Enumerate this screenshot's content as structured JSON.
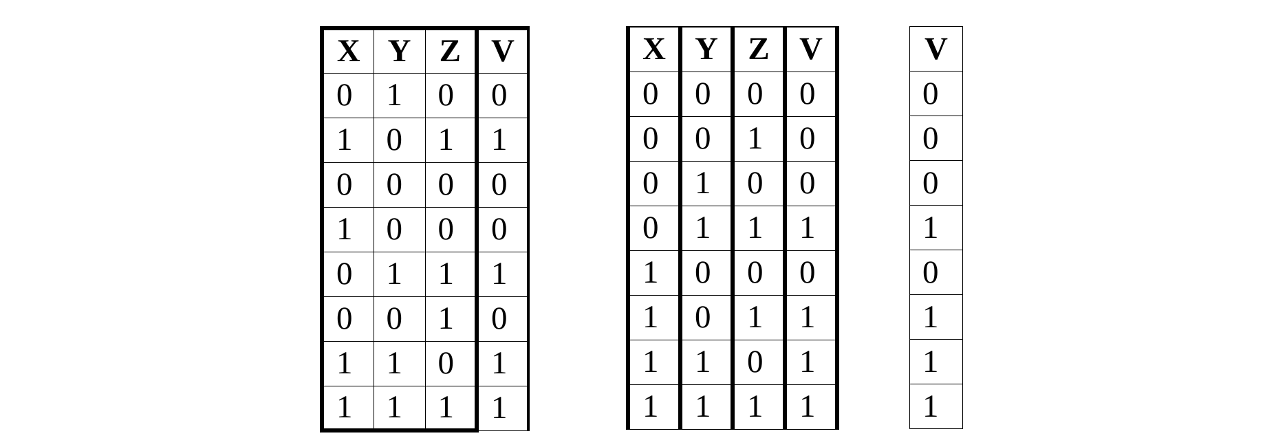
{
  "tables": [
    {
      "headers": [
        "X",
        "Y",
        "Z",
        "V"
      ],
      "rows": [
        [
          "0",
          "1",
          "0",
          "0"
        ],
        [
          "1",
          "0",
          "1",
          "1"
        ],
        [
          "0",
          "0",
          "0",
          "0"
        ],
        [
          "1",
          "0",
          "0",
          "0"
        ],
        [
          "0",
          "1",
          "1",
          "1"
        ],
        [
          "0",
          "0",
          "1",
          "0"
        ],
        [
          "1",
          "1",
          "0",
          "1"
        ],
        [
          "1",
          "1",
          "1",
          "1"
        ]
      ]
    },
    {
      "headers": [
        "X",
        "Y",
        "Z",
        "V"
      ],
      "rows": [
        [
          "0",
          "0",
          "0",
          "0"
        ],
        [
          "0",
          "0",
          "1",
          "0"
        ],
        [
          "0",
          "1",
          "0",
          "0"
        ],
        [
          "0",
          "1",
          "1",
          "1"
        ],
        [
          "1",
          "0",
          "0",
          "0"
        ],
        [
          "1",
          "0",
          "1",
          "1"
        ],
        [
          "1",
          "1",
          "0",
          "1"
        ],
        [
          "1",
          "1",
          "1",
          "1"
        ]
      ]
    },
    {
      "headers": [
        "V"
      ],
      "rows": [
        [
          "0"
        ],
        [
          "0"
        ],
        [
          "0"
        ],
        [
          "1"
        ],
        [
          "0"
        ],
        [
          "1"
        ],
        [
          "1"
        ],
        [
          "1"
        ]
      ]
    }
  ]
}
